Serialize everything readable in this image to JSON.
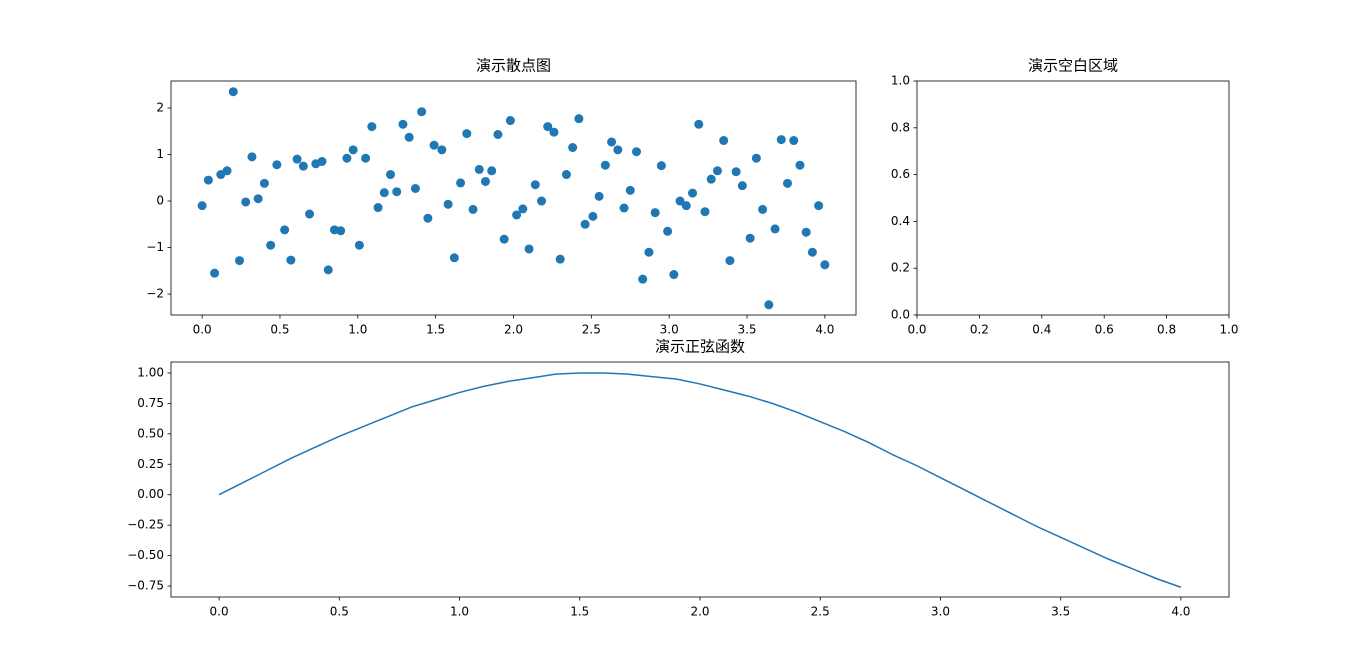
{
  "chart_data": [
    {
      "type": "scatter",
      "title": "演示散点图",
      "color": "#1f77b4",
      "x": [
        0,
        0.04,
        0.08,
        0.12,
        0.16,
        0.2,
        0.24,
        0.28,
        0.32,
        0.36,
        0.4,
        0.44,
        0.48,
        0.53,
        0.57,
        0.61,
        0.65,
        0.69,
        0.73,
        0.77,
        0.81,
        0.85,
        0.89,
        0.93,
        0.97,
        1.01,
        1.05,
        1.09,
        1.13,
        1.17,
        1.21,
        1.25,
        1.29,
        1.33,
        1.37,
        1.41,
        1.45,
        1.49,
        1.54,
        1.58,
        1.62,
        1.66,
        1.7,
        1.74,
        1.78,
        1.82,
        1.86,
        1.9,
        1.94,
        1.98,
        2.02,
        2.06,
        2.1,
        2.14,
        2.18,
        2.22,
        2.26,
        2.3,
        2.34,
        2.38,
        2.42,
        2.46,
        2.51,
        2.55,
        2.59,
        2.63,
        2.67,
        2.71,
        2.75,
        2.79,
        2.83,
        2.87,
        2.91,
        2.95,
        2.99,
        3.03,
        3.07,
        3.11,
        3.15,
        3.19,
        3.23,
        3.27,
        3.31,
        3.35,
        3.39,
        3.43,
        3.47,
        3.52,
        3.56,
        3.6,
        3.64,
        3.68,
        3.72,
        3.76,
        3.8,
        3.84,
        3.88,
        3.92,
        3.96,
        4.0
      ],
      "values": [
        -0.1,
        0.45,
        -1.55,
        0.57,
        0.65,
        2.35,
        -1.28,
        -0.02,
        0.95,
        0.05,
        0.38,
        -0.95,
        0.78,
        -0.62,
        -1.27,
        0.9,
        0.75,
        -0.28,
        0.8,
        0.85,
        -1.48,
        -0.62,
        -0.64,
        0.92,
        1.1,
        -0.95,
        0.92,
        1.6,
        -0.14,
        0.18,
        0.57,
        0.2,
        1.65,
        1.37,
        0.27,
        1.92,
        -0.37,
        1.2,
        1.1,
        -0.07,
        -1.22,
        0.39,
        1.45,
        -0.18,
        0.68,
        0.42,
        0.65,
        1.43,
        -0.82,
        1.73,
        -0.3,
        -0.17,
        -1.03,
        0.35,
        0.0,
        1.6,
        1.48,
        -1.25,
        0.57,
        1.15,
        1.77,
        -0.5,
        -0.33,
        0.1,
        0.77,
        1.27,
        1.1,
        -0.15,
        0.23,
        1.06,
        -1.68,
        -1.1,
        -0.25,
        0.76,
        -0.65,
        -1.58,
        0.0,
        -0.1,
        0.17,
        1.65,
        -0.23,
        0.47,
        0.65,
        1.3,
        -1.28,
        0.63,
        0.33,
        -0.8,
        0.92,
        -0.18,
        -2.23,
        -0.6,
        1.32,
        0.38,
        1.3,
        0.77,
        -0.67,
        -1.1,
        -0.1,
        -1.37
      ],
      "xlim": [
        -0.2,
        4.2
      ],
      "ylim": [
        -2.45,
        2.58
      ],
      "xticks": [
        {
          "value": 0,
          "label": "0.0"
        },
        {
          "value": 0.5,
          "label": "0.5"
        },
        {
          "value": 1,
          "label": "1.0"
        },
        {
          "value": 1.5,
          "label": "1.5"
        },
        {
          "value": 2,
          "label": "2.0"
        },
        {
          "value": 2.5,
          "label": "2.5"
        },
        {
          "value": 3,
          "label": "3.0"
        },
        {
          "value": 3.5,
          "label": "3.5"
        },
        {
          "value": 4,
          "label": "4.0"
        }
      ],
      "yticks": [
        {
          "value": -2,
          "label": "−2"
        },
        {
          "value": -1,
          "label": "−1"
        },
        0,
        1,
        2
      ]
    },
    {
      "type": "empty",
      "title": "演示空白区域",
      "xlim": [
        0,
        1
      ],
      "ylim": [
        0,
        1
      ],
      "xticks": [
        {
          "value": 0,
          "label": "0.0"
        },
        {
          "value": 0.2,
          "label": "0.2"
        },
        {
          "value": 0.4,
          "label": "0.4"
        },
        {
          "value": 0.6,
          "label": "0.6"
        },
        {
          "value": 0.8,
          "label": "0.8"
        },
        {
          "value": 1,
          "label": "1.0"
        }
      ],
      "yticks": [
        {
          "value": 0,
          "label": "0.0"
        },
        {
          "value": 0.2,
          "label": "0.2"
        },
        {
          "value": 0.4,
          "label": "0.4"
        },
        {
          "value": 0.6,
          "label": "0.6"
        },
        {
          "value": 0.8,
          "label": "0.8"
        },
        {
          "value": 1,
          "label": "1.0"
        }
      ]
    },
    {
      "type": "line",
      "title": "演示正弦函数",
      "color": "#1f77b4",
      "x": [
        0,
        0.1,
        0.2,
        0.3,
        0.4,
        0.5,
        0.6,
        0.7,
        0.8,
        0.9,
        1.0,
        1.1,
        1.2,
        1.3,
        1.4,
        1.5,
        1.6,
        1.7,
        1.8,
        1.9,
        2.0,
        2.1,
        2.2,
        2.3,
        2.4,
        2.5,
        2.6,
        2.7,
        2.8,
        2.9,
        3.0,
        3.1,
        3.2,
        3.3,
        3.4,
        3.5,
        3.6,
        3.7,
        3.8,
        3.9,
        4.0
      ],
      "values": [
        0,
        0.1,
        0.2,
        0.3,
        0.39,
        0.48,
        0.56,
        0.64,
        0.72,
        0.78,
        0.84,
        0.89,
        0.93,
        0.96,
        0.99,
        1.0,
        1.0,
        0.99,
        0.97,
        0.95,
        0.91,
        0.86,
        0.81,
        0.75,
        0.68,
        0.6,
        0.52,
        0.43,
        0.33,
        0.24,
        0.14,
        0.04,
        -0.06,
        -0.16,
        -0.26,
        -0.35,
        -0.44,
        -0.53,
        -0.61,
        -0.69,
        -0.76
      ],
      "xlim": [
        -0.2,
        4.2
      ],
      "ylim": [
        -0.84,
        1.09
      ],
      "xticks": [
        {
          "value": 0,
          "label": "0.0"
        },
        {
          "value": 0.5,
          "label": "0.5"
        },
        {
          "value": 1,
          "label": "1.0"
        },
        {
          "value": 1.5,
          "label": "1.5"
        },
        {
          "value": 2,
          "label": "2.0"
        },
        {
          "value": 2.5,
          "label": "2.5"
        },
        {
          "value": 3,
          "label": "3.0"
        },
        {
          "value": 3.5,
          "label": "3.5"
        },
        {
          "value": 4,
          "label": "4.0"
        }
      ],
      "yticks": [
        {
          "value": -0.75,
          "label": "−0.75"
        },
        {
          "value": -0.5,
          "label": "−0.50"
        },
        {
          "value": -0.25,
          "label": "−0.25"
        },
        {
          "value": 0,
          "label": "0.00"
        },
        {
          "value": 0.25,
          "label": "0.25"
        },
        {
          "value": 0.5,
          "label": "0.50"
        },
        {
          "value": 0.75,
          "label": "0.75"
        },
        {
          "value": 1,
          "label": "1.00"
        }
      ]
    }
  ]
}
